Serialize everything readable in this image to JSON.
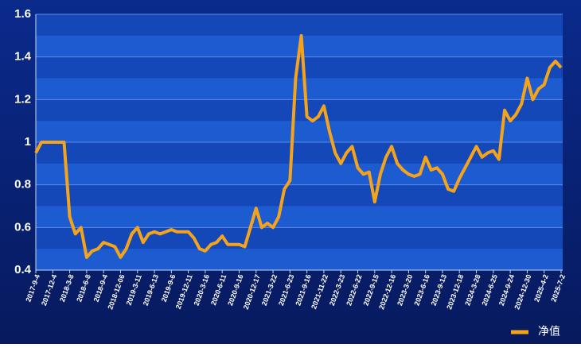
{
  "chart_data": {
    "type": "line",
    "categories": [
      "2017-9-4",
      null,
      null,
      "2017-12-4",
      null,
      null,
      "2018-3-8",
      null,
      null,
      "2018-6-8",
      null,
      null,
      "2018-9-4",
      null,
      null,
      "2018-12-06",
      null,
      null,
      "2019-3-11",
      null,
      null,
      "2019-6-13",
      null,
      null,
      "2019-9-6",
      null,
      null,
      "2019-12-11",
      null,
      null,
      "2020-3-16",
      null,
      null,
      "2020-6-11",
      null,
      null,
      "2020-9-16",
      null,
      null,
      "2020-12-17",
      null,
      null,
      "2021-3-22",
      null,
      null,
      "2021-6-23",
      null,
      null,
      "2021-9-16",
      null,
      null,
      "2021-11-22",
      null,
      null,
      "2022-3-23",
      null,
      null,
      "2022-6-22",
      null,
      null,
      "2022-9-15",
      null,
      null,
      "2022-12-16",
      null,
      null,
      "2023-3-20",
      null,
      null,
      "2023-6-16",
      null,
      null,
      "2023-9-13",
      null,
      null,
      "2023-12-18",
      null,
      null,
      "2024-3-28",
      null,
      null,
      "2024-6-25",
      null,
      null,
      "2024-9-24",
      null,
      null,
      "2024-12-30",
      null,
      null,
      "2025-4-2",
      null,
      null,
      "2025-7-2"
    ],
    "series": [
      {
        "name": "净值",
        "color": "#f5a31a",
        "values": [
          0.95,
          1.0,
          1.0,
          1.0,
          1.0,
          1.0,
          0.65,
          0.57,
          0.6,
          0.46,
          0.49,
          0.5,
          0.53,
          0.52,
          0.51,
          0.46,
          0.5,
          0.57,
          0.6,
          0.53,
          0.57,
          0.58,
          0.57,
          0.58,
          0.59,
          0.58,
          0.58,
          0.58,
          0.55,
          0.5,
          0.49,
          0.52,
          0.53,
          0.56,
          0.52,
          0.52,
          0.52,
          0.51,
          0.6,
          0.69,
          0.6,
          0.62,
          0.6,
          0.65,
          0.78,
          0.82,
          1.3,
          1.5,
          1.12,
          1.1,
          1.12,
          1.17,
          1.05,
          0.95,
          0.9,
          0.95,
          0.98,
          0.88,
          0.85,
          0.86,
          0.72,
          0.85,
          0.93,
          0.98,
          0.9,
          0.87,
          0.85,
          0.84,
          0.85,
          0.93,
          0.87,
          0.88,
          0.85,
          0.78,
          0.77,
          0.83,
          0.88,
          0.93,
          0.98,
          0.93,
          0.95,
          0.96,
          0.92,
          1.15,
          1.1,
          1.13,
          1.18,
          1.3,
          1.2,
          1.25,
          1.27,
          1.35,
          1.38,
          1.35
        ]
      }
    ],
    "ylim": [
      0.4,
      1.6
    ],
    "yticks": [
      0.4,
      0.6,
      0.8,
      1,
      1.2,
      1.4,
      1.6
    ],
    "grid": true,
    "legend": "bottom-right"
  }
}
